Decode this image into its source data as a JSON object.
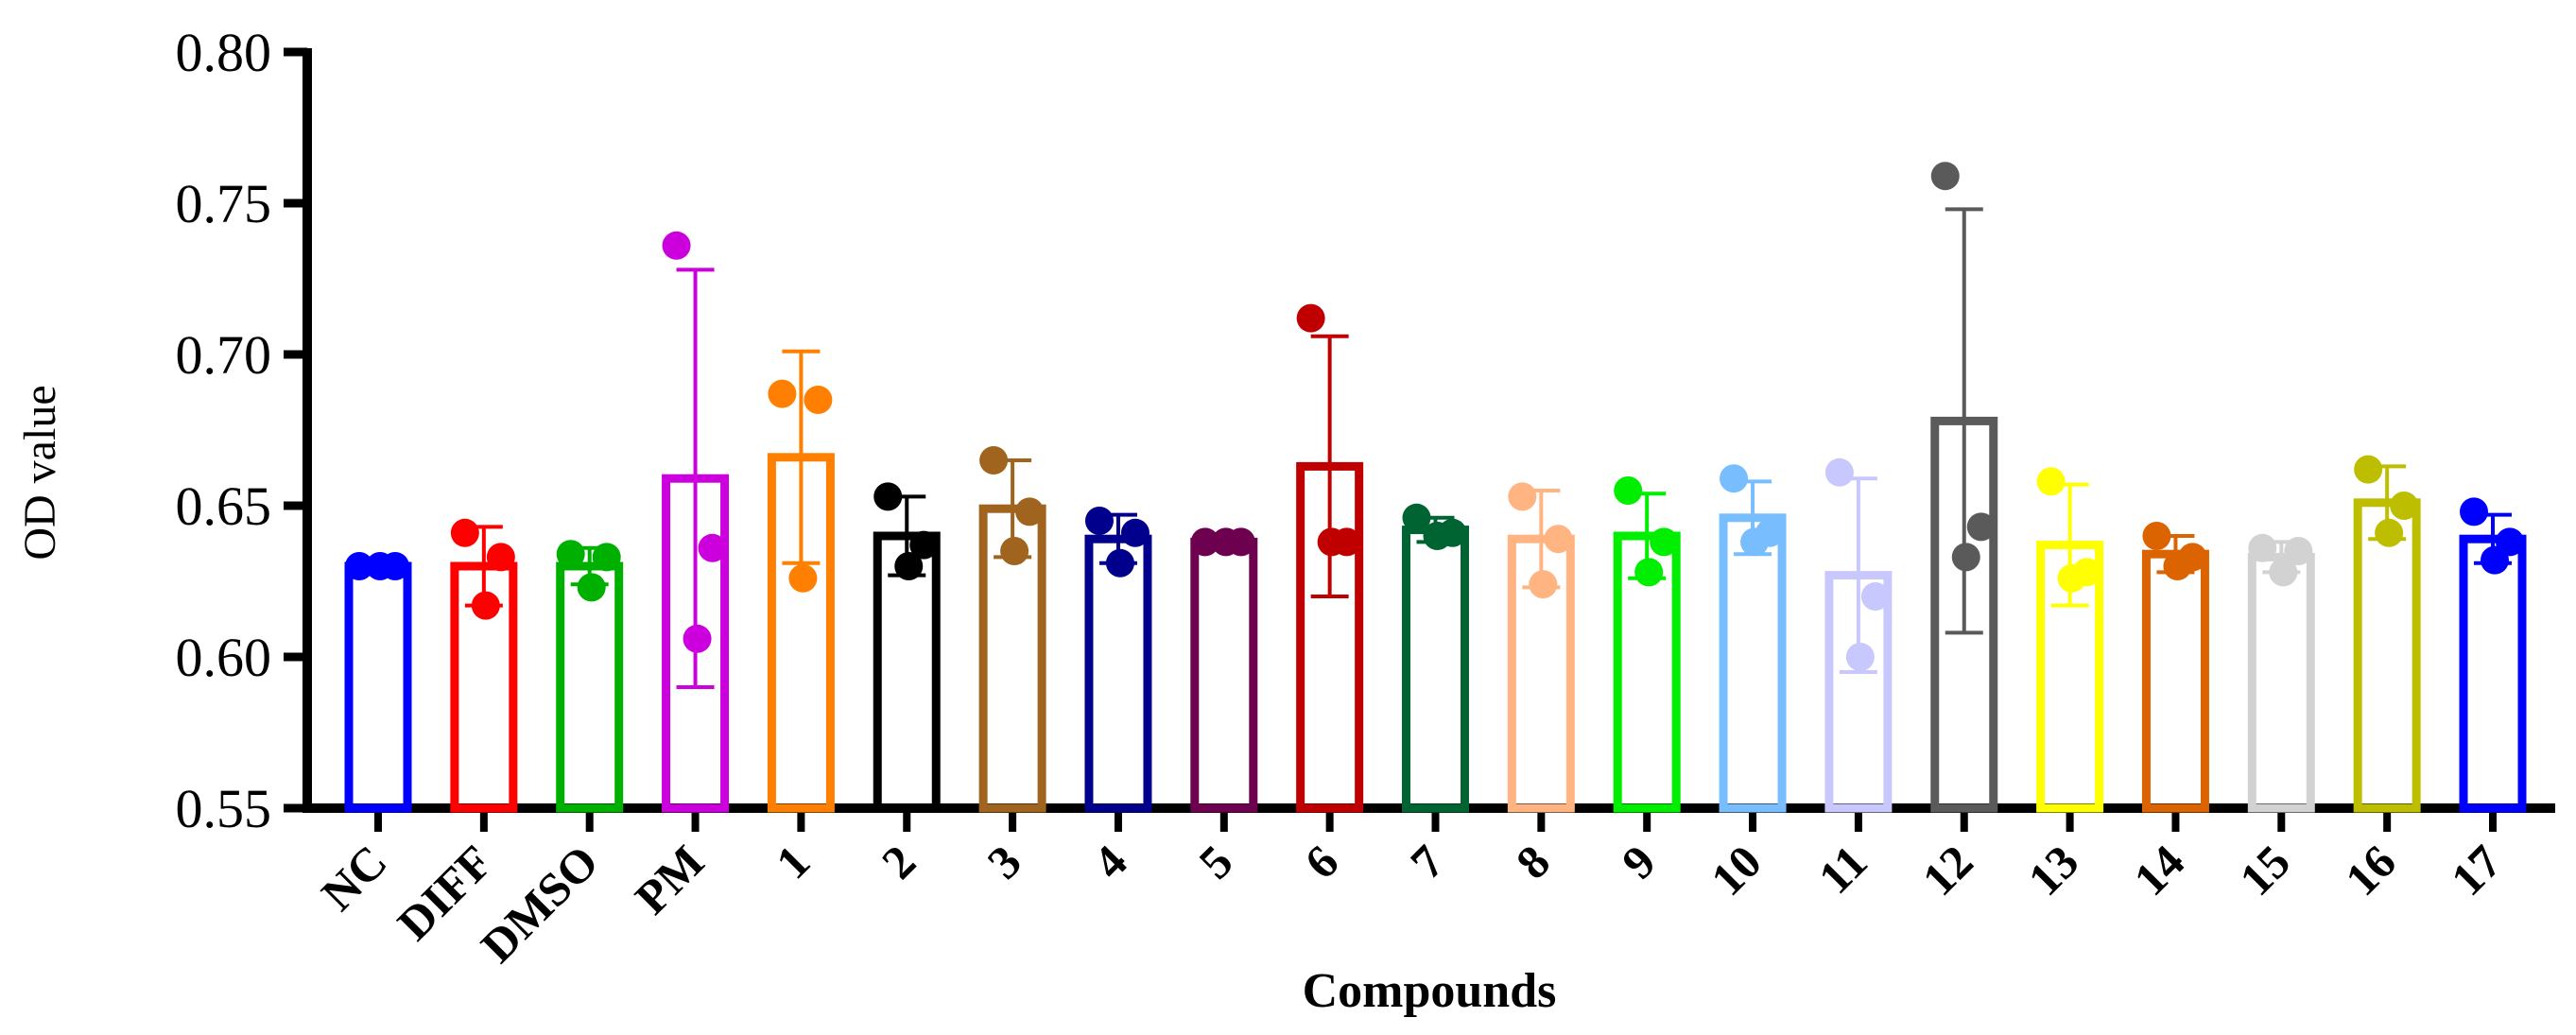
{
  "chart_data": {
    "type": "bar",
    "title": "",
    "xlabel": "Compounds",
    "ylabel": "OD value",
    "ylim": [
      0.55,
      0.8
    ],
    "yticks": [
      0.55,
      0.6,
      0.65,
      0.7,
      0.75,
      0.8
    ],
    "ytick_labels": [
      "0.55",
      "0.60",
      "0.65",
      "0.70",
      "0.75",
      "0.80"
    ],
    "grid": false,
    "legend": "none",
    "categories": [
      "NC",
      "DIFF",
      "DMSO",
      "PM",
      "1",
      "2",
      "3",
      "4",
      "5",
      "6",
      "7",
      "8",
      "9",
      "10",
      "11",
      "12",
      "13",
      "14",
      "15",
      "16",
      "17"
    ],
    "colors": [
      "#0000ff",
      "#ff0000",
      "#00b000",
      "#cc00dd",
      "#ff8000",
      "#000000",
      "#a0641e",
      "#00008c",
      "#6e0050",
      "#c00000",
      "#006432",
      "#ffb482",
      "#00ee00",
      "#78beff",
      "#c8c8ff",
      "#5a5a5a",
      "#ffff00",
      "#dc6400",
      "#d2d2d2",
      "#bebe00",
      "#0000ff"
    ],
    "values": [
      0.63,
      0.63,
      0.63,
      0.659,
      0.666,
      0.64,
      0.649,
      0.639,
      0.638,
      0.663,
      0.642,
      0.639,
      0.64,
      0.646,
      0.627,
      0.678,
      0.637,
      0.634,
      0.633,
      0.651,
      0.639
    ],
    "error": [
      0.001,
      0.013,
      0.006,
      0.069,
      0.035,
      0.013,
      0.016,
      0.008,
      0.001,
      0.043,
      0.004,
      0.016,
      0.014,
      0.012,
      0.032,
      0.07,
      0.02,
      0.006,
      0.005,
      0.012,
      0.008
    ],
    "points": [
      [
        0.63,
        0.63,
        0.63
      ],
      [
        0.641,
        0.633,
        0.617
      ],
      [
        0.634,
        0.633,
        0.623
      ],
      [
        0.736,
        0.636,
        0.606
      ],
      [
        0.687,
        0.685,
        0.626
      ],
      [
        0.653,
        0.637,
        0.63
      ],
      [
        0.665,
        0.648,
        0.635
      ],
      [
        0.645,
        0.641,
        0.631
      ],
      [
        0.638,
        0.638,
        0.638
      ],
      [
        0.712,
        0.638,
        0.638
      ],
      [
        0.646,
        0.641,
        0.64
      ],
      [
        0.653,
        0.639,
        0.624
      ],
      [
        0.655,
        0.638,
        0.628
      ],
      [
        0.659,
        0.641,
        0.638
      ],
      [
        0.661,
        0.62,
        0.6
      ],
      [
        0.759,
        0.643,
        0.633
      ],
      [
        0.658,
        0.628,
        0.626
      ],
      [
        0.64,
        0.633,
        0.63
      ],
      [
        0.636,
        0.635,
        0.628
      ],
      [
        0.662,
        0.65,
        0.641
      ],
      [
        0.648,
        0.638,
        0.632
      ]
    ]
  }
}
